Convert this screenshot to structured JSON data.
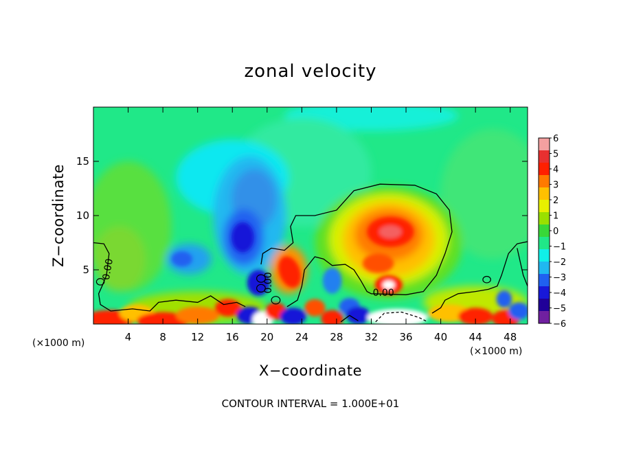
{
  "chart_data": {
    "type": "heatmap",
    "title": "zonal velocity",
    "xlabel": "X−coordinate",
    "ylabel": "Z−coordinate",
    "x_unit_left": "(×1000 m)",
    "x_unit_right": "(×1000 m)",
    "xlim": [
      0,
      50
    ],
    "ylim": [
      0,
      20
    ],
    "x_ticks": [
      4,
      8,
      12,
      16,
      20,
      24,
      28,
      32,
      36,
      40,
      44,
      48
    ],
    "y_ticks": [
      5,
      10,
      15
    ],
    "colorbar": {
      "ticks": [
        "6",
        "5",
        "4",
        "3",
        "2",
        "1",
        "0",
        "−1",
        "−2",
        "−3",
        "−4",
        "−5",
        "−6"
      ],
      "colors": [
        "#f4a0a0",
        "#e83030",
        "#ff2000",
        "#ff7a00",
        "#ffc000",
        "#e8f000",
        "#9ae000",
        "#38d838",
        "#20e888",
        "#10f0e8",
        "#20b8f0",
        "#2060f0",
        "#1818d8",
        "#200098",
        "#7020a0"
      ]
    },
    "contour_labels": [
      "0.00",
      "0.00",
      "0.00"
    ],
    "features": [
      {
        "kind": "min",
        "x": 17.5,
        "z": 8.0,
        "value": -5
      },
      {
        "kind": "min",
        "x": 19.0,
        "z": 12.0,
        "value": -3
      },
      {
        "kind": "min",
        "x": 10.5,
        "z": 6.0,
        "value": -3
      },
      {
        "kind": "min",
        "x": 19.0,
        "z": 3.8,
        "value": -4
      },
      {
        "kind": "max",
        "x": 22.5,
        "z": 5.0,
        "value": 5
      },
      {
        "kind": "max",
        "x": 34.0,
        "z": 8.5,
        "value": 5
      },
      {
        "kind": "max",
        "x": 33.0,
        "z": 5.5,
        "value": 3
      },
      {
        "kind": "max",
        "x": 34.0,
        "z": 3.5,
        "value": 6
      },
      {
        "kind": "min",
        "x": 27.5,
        "z": 4.0,
        "value": -3
      },
      {
        "kind": "min",
        "x": 47.5,
        "z": 2.3,
        "value": -3
      }
    ],
    "footer": "CONTOUR INTERVAL = 1.000E+01"
  }
}
